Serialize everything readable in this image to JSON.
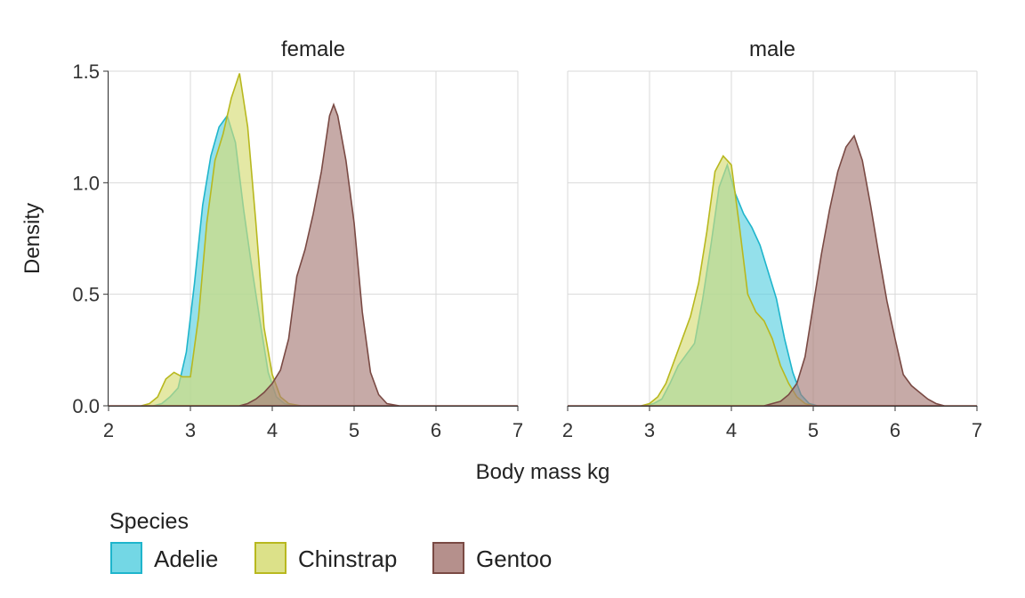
{
  "chart_data": {
    "type": "area",
    "chart_kind": "density",
    "xlabel": "Body mass kg",
    "ylabel": "Density",
    "xlim": [
      2,
      7
    ],
    "ylim": [
      0,
      1.5
    ],
    "x_ticks": [
      "2",
      "3",
      "4",
      "5",
      "6",
      "7"
    ],
    "y_ticks": [
      "0.0",
      "0.5",
      "1.0",
      "1.5"
    ],
    "grid": true,
    "legend": {
      "title": "Species",
      "position": "bottom-left",
      "items": [
        {
          "name": "Adelie",
          "fill": "#5bd0e0",
          "stroke": "#1fb5cc"
        },
        {
          "name": "Chinstrap",
          "fill": "#d6dc74",
          "stroke": "#b8b81f"
        },
        {
          "name": "Gentoo",
          "fill": "#a87c78",
          "stroke": "#7a4a44"
        }
      ]
    },
    "panels": [
      {
        "title": "female",
        "series": [
          {
            "name": "Adelie",
            "points": [
              [
                2.55,
                0
              ],
              [
                2.65,
                0.01
              ],
              [
                2.75,
                0.04
              ],
              [
                2.85,
                0.08
              ],
              [
                2.95,
                0.24
              ],
              [
                3.05,
                0.55
              ],
              [
                3.15,
                0.9
              ],
              [
                3.25,
                1.12
              ],
              [
                3.35,
                1.25
              ],
              [
                3.45,
                1.3
              ],
              [
                3.55,
                1.18
              ],
              [
                3.65,
                0.88
              ],
              [
                3.75,
                0.62
              ],
              [
                3.85,
                0.38
              ],
              [
                3.95,
                0.15
              ],
              [
                4.05,
                0.04
              ],
              [
                4.15,
                0.01
              ],
              [
                4.25,
                0
              ]
            ]
          },
          {
            "name": "Chinstrap",
            "points": [
              [
                2.4,
                0
              ],
              [
                2.5,
                0.01
              ],
              [
                2.6,
                0.04
              ],
              [
                2.7,
                0.12
              ],
              [
                2.8,
                0.15
              ],
              [
                2.9,
                0.13
              ],
              [
                3.0,
                0.13
              ],
              [
                3.1,
                0.4
              ],
              [
                3.2,
                0.82
              ],
              [
                3.3,
                1.1
              ],
              [
                3.4,
                1.22
              ],
              [
                3.5,
                1.38
              ],
              [
                3.6,
                1.49
              ],
              [
                3.7,
                1.25
              ],
              [
                3.8,
                0.82
              ],
              [
                3.9,
                0.35
              ],
              [
                4.0,
                0.14
              ],
              [
                4.1,
                0.04
              ],
              [
                4.2,
                0.01
              ],
              [
                4.35,
                0
              ]
            ]
          },
          {
            "name": "Gentoo",
            "points": [
              [
                3.6,
                0
              ],
              [
                3.7,
                0.01
              ],
              [
                3.8,
                0.03
              ],
              [
                3.9,
                0.06
              ],
              [
                4.0,
                0.1
              ],
              [
                4.1,
                0.16
              ],
              [
                4.2,
                0.3
              ],
              [
                4.3,
                0.58
              ],
              [
                4.4,
                0.7
              ],
              [
                4.5,
                0.86
              ],
              [
                4.6,
                1.05
              ],
              [
                4.7,
                1.3
              ],
              [
                4.75,
                1.35
              ],
              [
                4.8,
                1.3
              ],
              [
                4.9,
                1.1
              ],
              [
                5.0,
                0.82
              ],
              [
                5.1,
                0.42
              ],
              [
                5.2,
                0.15
              ],
              [
                5.3,
                0.05
              ],
              [
                5.4,
                0.01
              ],
              [
                5.55,
                0
              ]
            ]
          }
        ]
      },
      {
        "title": "male",
        "series": [
          {
            "name": "Adelie",
            "points": [
              [
                2.95,
                0
              ],
              [
                3.05,
                0.01
              ],
              [
                3.15,
                0.03
              ],
              [
                3.25,
                0.1
              ],
              [
                3.35,
                0.18
              ],
              [
                3.45,
                0.23
              ],
              [
                3.55,
                0.28
              ],
              [
                3.65,
                0.48
              ],
              [
                3.75,
                0.72
              ],
              [
                3.85,
                0.98
              ],
              [
                3.95,
                1.08
              ],
              [
                4.05,
                0.95
              ],
              [
                4.15,
                0.86
              ],
              [
                4.25,
                0.8
              ],
              [
                4.35,
                0.72
              ],
              [
                4.45,
                0.6
              ],
              [
                4.55,
                0.48
              ],
              [
                4.65,
                0.3
              ],
              [
                4.75,
                0.15
              ],
              [
                4.85,
                0.05
              ],
              [
                4.95,
                0.01
              ],
              [
                5.05,
                0
              ]
            ]
          },
          {
            "name": "Chinstrap",
            "points": [
              [
                2.9,
                0
              ],
              [
                3.0,
                0.01
              ],
              [
                3.1,
                0.04
              ],
              [
                3.2,
                0.1
              ],
              [
                3.3,
                0.2
              ],
              [
                3.4,
                0.3
              ],
              [
                3.5,
                0.4
              ],
              [
                3.6,
                0.55
              ],
              [
                3.7,
                0.78
              ],
              [
                3.8,
                1.05
              ],
              [
                3.9,
                1.12
              ],
              [
                4.0,
                1.08
              ],
              [
                4.1,
                0.8
              ],
              [
                4.2,
                0.5
              ],
              [
                4.3,
                0.42
              ],
              [
                4.4,
                0.38
              ],
              [
                4.5,
                0.3
              ],
              [
                4.6,
                0.18
              ],
              [
                4.7,
                0.1
              ],
              [
                4.8,
                0.04
              ],
              [
                4.9,
                0.01
              ],
              [
                5.0,
                0
              ]
            ]
          },
          {
            "name": "Gentoo",
            "points": [
              [
                4.4,
                0
              ],
              [
                4.5,
                0.01
              ],
              [
                4.6,
                0.02
              ],
              [
                4.7,
                0.05
              ],
              [
                4.8,
                0.1
              ],
              [
                4.9,
                0.22
              ],
              [
                5.0,
                0.45
              ],
              [
                5.1,
                0.68
              ],
              [
                5.2,
                0.88
              ],
              [
                5.3,
                1.05
              ],
              [
                5.4,
                1.16
              ],
              [
                5.5,
                1.21
              ],
              [
                5.6,
                1.1
              ],
              [
                5.7,
                0.9
              ],
              [
                5.8,
                0.68
              ],
              [
                5.9,
                0.47
              ],
              [
                6.0,
                0.3
              ],
              [
                6.1,
                0.14
              ],
              [
                6.2,
                0.09
              ],
              [
                6.3,
                0.06
              ],
              [
                6.4,
                0.03
              ],
              [
                6.5,
                0.01
              ],
              [
                6.6,
                0
              ]
            ]
          }
        ]
      }
    ]
  }
}
